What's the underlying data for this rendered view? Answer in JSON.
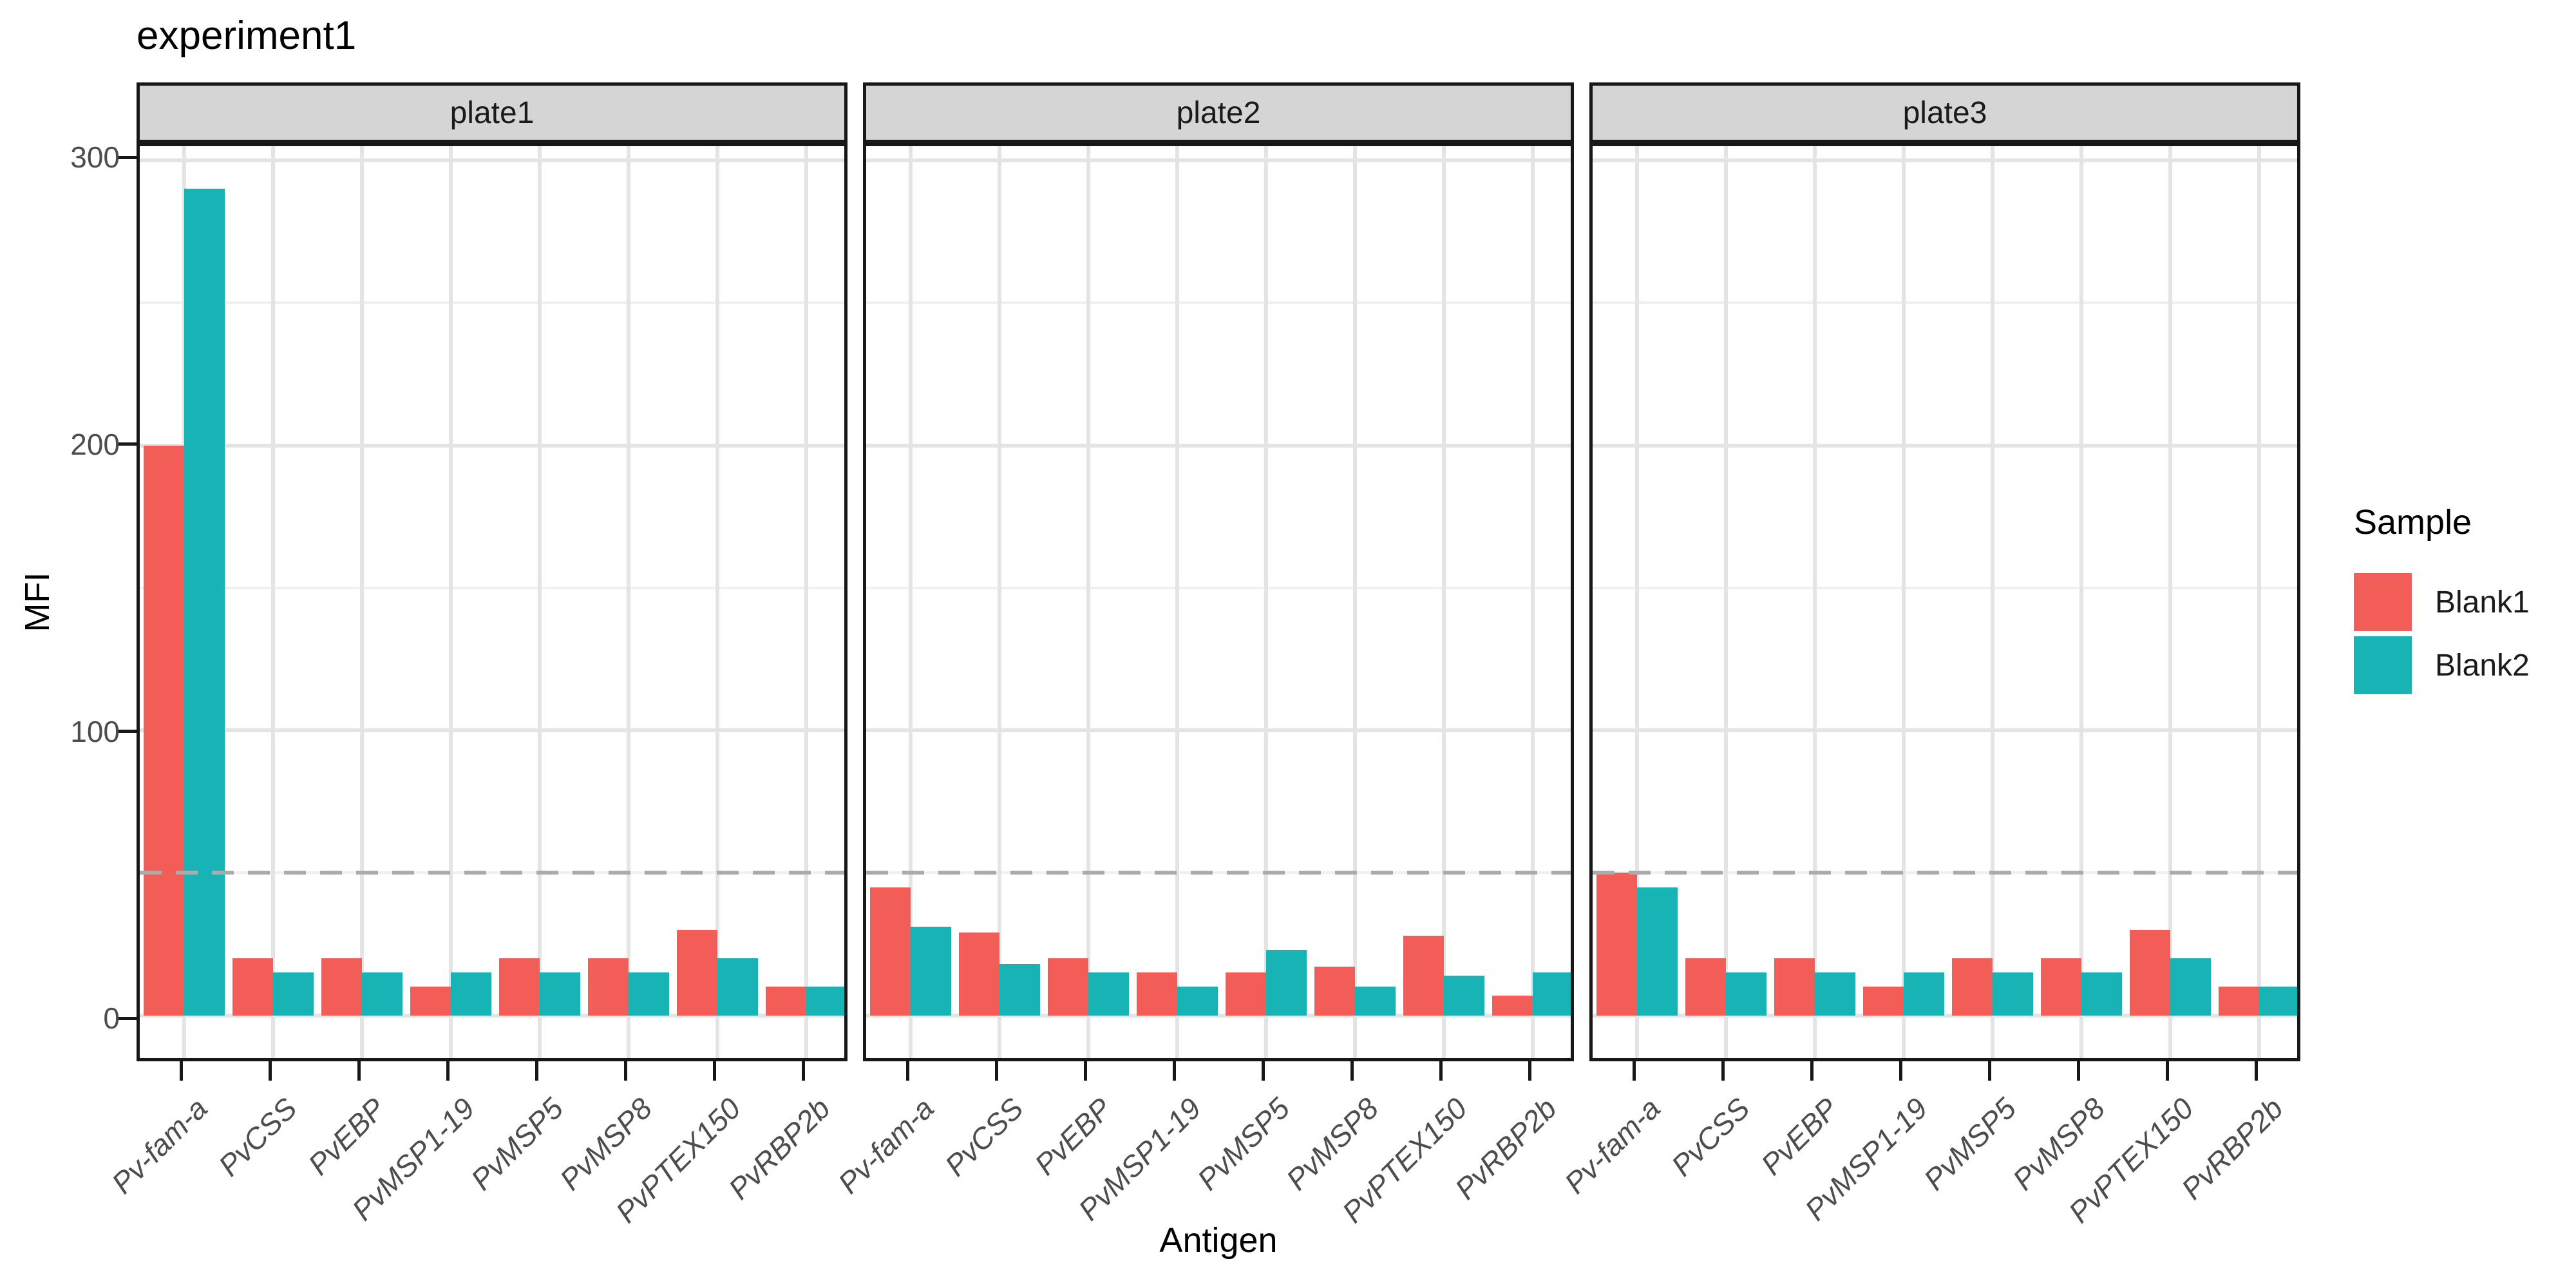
{
  "title": "experiment1",
  "legend": {
    "title": "Sample",
    "items": [
      {
        "label": "Blank1",
        "color": "#f25d58"
      },
      {
        "label": "Blank2",
        "color": "#17b3b5"
      }
    ]
  },
  "chart_data": {
    "type": "bar",
    "title": "experiment1",
    "xlabel": "Antigen",
    "ylabel": "MFI",
    "ylim": [
      -15,
      305
    ],
    "y_major_gridlines": [
      0,
      100,
      200,
      300
    ],
    "y_minor_gridlines": [
      50,
      150,
      250
    ],
    "y_tick_labels": [
      "0",
      "100",
      "200",
      "300"
    ],
    "threshold_line": {
      "y": 50,
      "style": "dashed",
      "color": "#ababab"
    },
    "grid": true,
    "legend_position": "right",
    "categories": [
      "Pv-fam-a",
      "PvCSS",
      "PvEBP",
      "PvMSP1-19",
      "PvMSP5",
      "PvMSP8",
      "PvPTEX150",
      "PvRBP2b"
    ],
    "facets": [
      {
        "label": "plate1",
        "series": [
          {
            "name": "Blank1",
            "color": "#f25d58",
            "values": [
              200,
              20,
              20,
              10,
              20,
              20,
              30,
              10
            ]
          },
          {
            "name": "Blank2",
            "color": "#17b3b5",
            "values": [
              290,
              15,
              15,
              15,
              15,
              15,
              20,
              10
            ]
          }
        ]
      },
      {
        "label": "plate2",
        "series": [
          {
            "name": "Blank1",
            "color": "#f25d58",
            "values": [
              45,
              29,
              20,
              15,
              15,
              17,
              28,
              7
            ]
          },
          {
            "name": "Blank2",
            "color": "#17b3b5",
            "values": [
              31,
              18,
              15,
              10,
              23,
              10,
              14,
              15
            ]
          }
        ]
      },
      {
        "label": "plate3",
        "series": [
          {
            "name": "Blank1",
            "color": "#f25d58",
            "values": [
              50,
              20,
              20,
              10,
              20,
              20,
              30,
              10
            ]
          },
          {
            "name": "Blank2",
            "color": "#17b3b5",
            "values": [
              45,
              15,
              15,
              15,
              15,
              15,
              20,
              10
            ]
          }
        ]
      }
    ]
  }
}
